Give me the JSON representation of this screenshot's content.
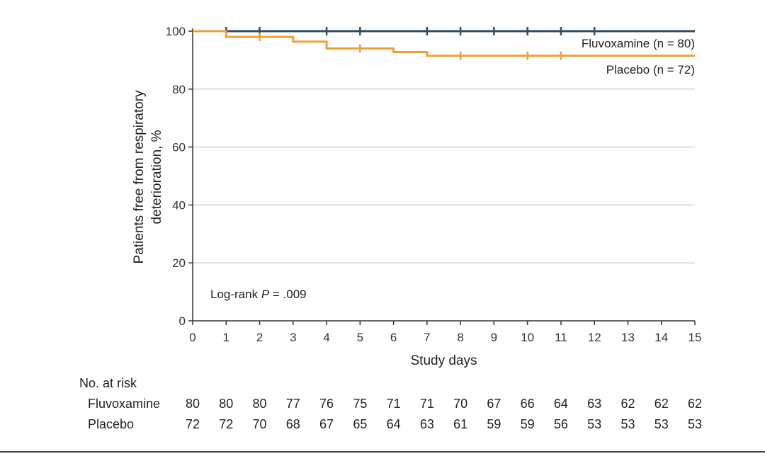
{
  "chart_data": {
    "type": "line",
    "subtype": "kaplan-meier",
    "xlabel": "Study days",
    "ylabel_lines": [
      "Patients free from respiratory",
      "deterioration, %"
    ],
    "xlim": [
      0,
      15
    ],
    "ylim": [
      0,
      100
    ],
    "x_ticks": [
      0,
      1,
      2,
      3,
      4,
      5,
      6,
      7,
      8,
      9,
      10,
      11,
      12,
      13,
      14,
      15
    ],
    "y_ticks": [
      0,
      20,
      40,
      60,
      80,
      100
    ],
    "grid": "horizontal",
    "annotation": {
      "prefix": "Log-rank ",
      "italic": "P",
      "suffix": " = .009"
    },
    "series": [
      {
        "name": "Fluvoxamine (n = 80)",
        "color": "#2c4f5e",
        "steps": [
          [
            0,
            100
          ],
          [
            15,
            100
          ]
        ],
        "censor_x": [
          1,
          2,
          4,
          5,
          7,
          8,
          9,
          10,
          11,
          12
        ]
      },
      {
        "name": "Placebo (n = 72)",
        "color": "#f0a030",
        "steps": [
          [
            0,
            100
          ],
          [
            1,
            98
          ],
          [
            3,
            96.4
          ],
          [
            4,
            94
          ],
          [
            6,
            92.8
          ],
          [
            7,
            91.5
          ],
          [
            15,
            91.5
          ]
        ],
        "censor_x": [
          2,
          5,
          8,
          10,
          11
        ]
      }
    ]
  },
  "risk_table": {
    "title": "No. at risk",
    "rows": [
      {
        "label": "Fluvoxamine",
        "values": [
          80,
          80,
          80,
          77,
          76,
          75,
          71,
          71,
          70,
          67,
          66,
          64,
          63,
          62,
          62,
          62
        ]
      },
      {
        "label": "Placebo",
        "values": [
          72,
          72,
          70,
          68,
          67,
          65,
          64,
          63,
          61,
          59,
          59,
          56,
          53,
          53,
          53,
          53
        ]
      }
    ]
  },
  "colors": {
    "grid": "#d0d0d0",
    "axis": "#333333",
    "bottom_rule": "#444444"
  }
}
